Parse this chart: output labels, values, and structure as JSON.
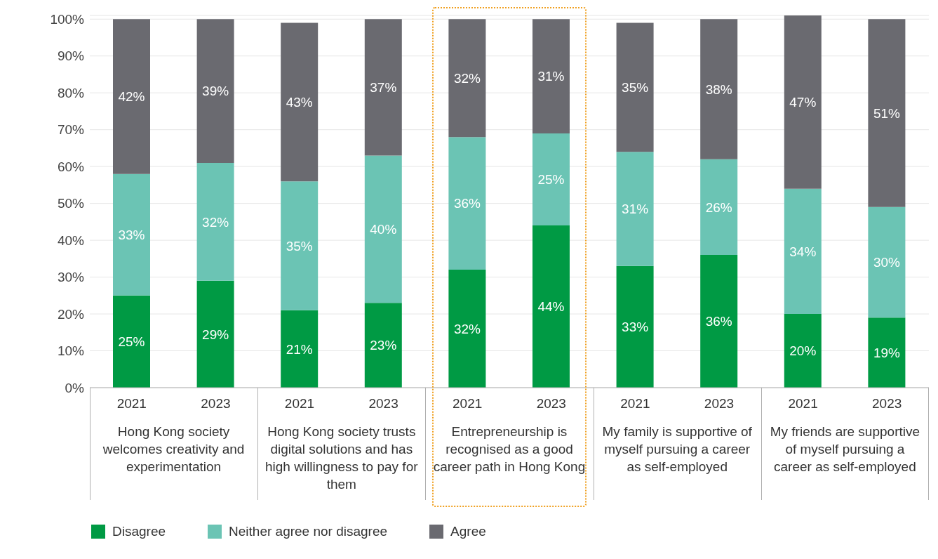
{
  "chart_data": {
    "type": "bar",
    "stacked": true,
    "grid": "y",
    "legend": "bottom",
    "categories": [
      "2021",
      "2023",
      "2021",
      "2023",
      "2021",
      "2023",
      "2021",
      "2023",
      "2021",
      "2023"
    ],
    "series": [
      {
        "name": "Disagree",
        "color": "#009a44",
        "values": [
          25,
          29,
          21,
          23,
          32,
          44,
          33,
          36,
          20,
          19
        ],
        "value_labels": [
          "25%",
          "29%",
          "21%",
          "23%",
          "32%",
          "44%",
          "33%",
          "36%",
          "20%",
          "19%"
        ]
      },
      {
        "name": "Neither agree nor disagree",
        "color": "#6bc4b4",
        "values": [
          33,
          32,
          35,
          40,
          36,
          25,
          31,
          26,
          34,
          30
        ],
        "value_labels": [
          "33%",
          "32%",
          "35%",
          "40%",
          "36%",
          "25%",
          "31%",
          "26%",
          "34%",
          "30%"
        ]
      },
      {
        "name": "Agree",
        "color": "#6a6a70",
        "values": [
          42,
          39,
          43,
          37,
          32,
          31,
          35,
          38,
          47,
          51
        ],
        "value_labels": [
          "42%",
          "39%",
          "43%",
          "37%",
          "32%",
          "31%",
          "35%",
          "38%",
          "47%",
          "51%"
        ]
      }
    ],
    "ylim": [
      0,
      101
    ],
    "yticks": [
      {
        "value": 0,
        "label": "0%"
      },
      {
        "value": 10,
        "label": "10%"
      },
      {
        "value": 20,
        "label": "20%"
      },
      {
        "value": 30,
        "label": "30%"
      },
      {
        "value": 40,
        "label": "40%"
      },
      {
        "value": 50,
        "label": "50%"
      },
      {
        "value": 60,
        "label": "60%"
      },
      {
        "value": 70,
        "label": "70%"
      },
      {
        "value": 80,
        "label": "80%"
      },
      {
        "value": 90,
        "label": "90%"
      },
      {
        "value": 100,
        "label": "100%"
      }
    ],
    "annotations": [
      "Hong Kong society welcomes creativity and experimentation",
      "Hong Kong society trusts digital solutions and has high willingness to pay for them",
      "Entrepreneurship is recognised as a good career path in Hong Kong",
      "My family is supportive of myself pursuing a career as self-employed",
      "My friends are supportive of myself pursuing a career as self-employed"
    ]
  }
}
